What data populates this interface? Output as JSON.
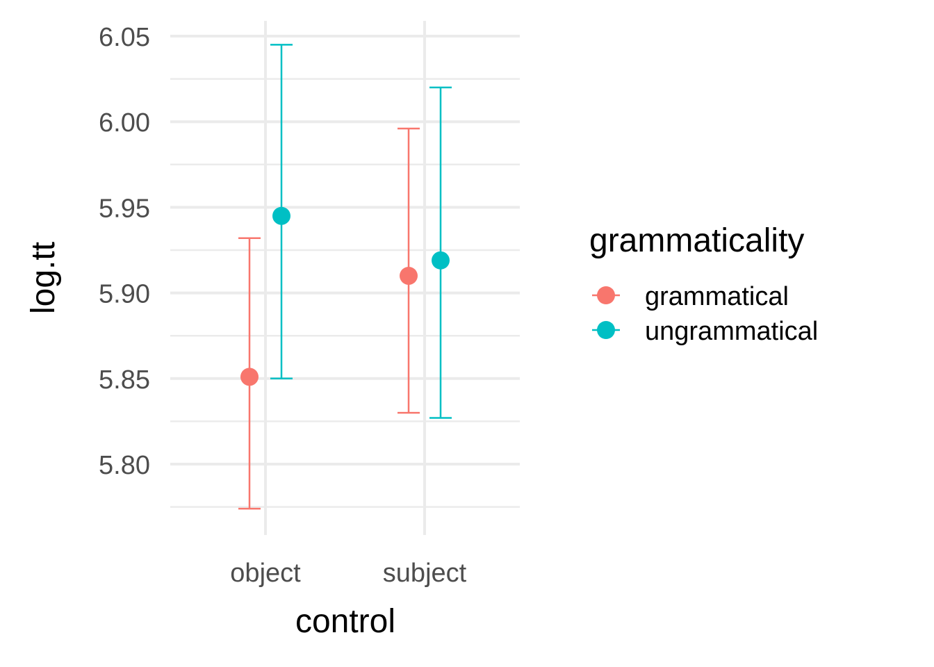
{
  "chart_data": {
    "type": "scatter",
    "subtype": "point-with-errorbars",
    "xlabel": "control",
    "ylabel": "log.tt",
    "categories": [
      "object",
      "subject"
    ],
    "ylim": [
      5.775,
      6.057
    ],
    "y_ticks": [
      5.8,
      5.85,
      5.9,
      5.95,
      6.0,
      6.05
    ],
    "y_tick_labels": [
      "5.80",
      "5.85",
      "5.90",
      "5.95",
      "6.00",
      "6.05"
    ],
    "grid": true,
    "legend": {
      "title": "grammaticality",
      "placement": "right"
    },
    "series": [
      {
        "name": "grammatical",
        "color": "#F8766D",
        "points": [
          {
            "x": "object",
            "y": 5.851,
            "ymin": 5.774,
            "ymax": 5.932
          },
          {
            "x": "subject",
            "y": 5.91,
            "ymin": 5.83,
            "ymax": 5.996
          }
        ]
      },
      {
        "name": "ungrammatical",
        "color": "#00BFC4",
        "points": [
          {
            "x": "object",
            "y": 5.945,
            "ymin": 5.85,
            "ymax": 6.045
          },
          {
            "x": "subject",
            "y": 5.919,
            "ymin": 5.827,
            "ymax": 6.02
          }
        ]
      }
    ]
  }
}
